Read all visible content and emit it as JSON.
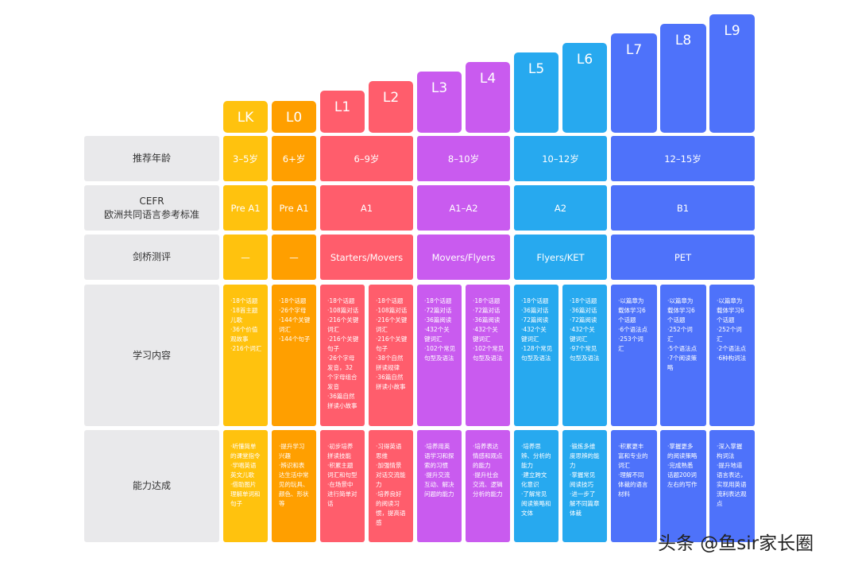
{
  "levels": {
    "lk": "LK",
    "l0": "L0",
    "l1": "L1",
    "l2": "L2",
    "l3": "L3",
    "l4": "L4",
    "l5": "L5",
    "l6": "L6",
    "l7": "L7",
    "l8": "L8",
    "l9": "L9"
  },
  "row_labels": {
    "age": "推荐年龄",
    "cefr": "CEFR\n欧洲共同语言参考标准",
    "cambridge": "剑桥测评",
    "content": "学习内容",
    "ability": "能力达成"
  },
  "age": {
    "lk": "3–5岁",
    "l0": "6+岁",
    "l1l2": "6–9岁",
    "l3l4": "8–10岁",
    "l5l6": "10–12岁",
    "l7l9": "12–15岁"
  },
  "cefr": {
    "lk": "Pre A1",
    "l0": "Pre A1",
    "l1l2": "A1",
    "l3l4": "A1–A2",
    "l5l6": "A2",
    "l7l9": "B1"
  },
  "cambridge": {
    "lk": "—",
    "l0": "—",
    "l1l2": "Starters/Movers",
    "l3l4": "Movers/Flyers",
    "l5l6": "Flyers/KET",
    "l7l9": "PET"
  },
  "content": {
    "lk": [
      "·18个话题",
      "·18首主题",
      "儿歌",
      "·36个价值",
      "观故事",
      "·216个词汇"
    ],
    "l0": [
      "·18个话题",
      "·26个字母",
      "·144个关键",
      "词汇",
      "·144个句子"
    ],
    "l1": [
      "·18个话题",
      "·108篇对话",
      "·216个关键",
      "词汇",
      "·216个关键",
      "句子",
      "·26个字母",
      "发音，32",
      "个字母组合",
      "发音",
      "·36篇自然",
      "拼读小故事"
    ],
    "l2": [
      "·18个话题",
      "·108篇对话",
      "·216个关键",
      "词汇",
      "·216个关键",
      "句子",
      "·38个自然",
      "拼读规律",
      "·36篇自然",
      "拼读小故事"
    ],
    "l3": [
      "·18个话题",
      "·72篇对话",
      "·36篇阅读",
      "·432个关",
      "键词汇",
      "·102个常见",
      "句型及语法"
    ],
    "l4": [
      "·18个话题",
      "·72篇对话",
      "·36篇阅读",
      "·432个关",
      "键词汇",
      "·102个常见",
      "句型及语法"
    ],
    "l5": [
      "·18个话题",
      "·36篇对话",
      "·72篇阅读",
      "·432个关",
      "键词汇",
      "·128个常见",
      "句型及语法"
    ],
    "l6": [
      "·18个话题",
      "·36篇对话",
      "·72篇阅读",
      "·432个关",
      "键词汇",
      "·97个常见",
      "句型及语法"
    ],
    "l7": [
      "·以篇章为",
      "载体学习6",
      "个话题",
      "·6个语法点",
      "·253个词",
      "汇"
    ],
    "l8": [
      "·以篇章为",
      "载体学习6",
      "个话题",
      "·252个词",
      "汇",
      "·5个语法点",
      "·7个阅读策",
      "略"
    ],
    "l9": [
      "·以篇章为",
      "载体学习6",
      "个话题",
      "·252个词",
      "汇",
      "·2个语法点",
      "·6种构词法"
    ]
  },
  "ability": {
    "lk": [
      "·听懂简单",
      "的课堂指令",
      "·学唱英语",
      "英文儿歌",
      "·借助图片",
      "理解单词和",
      "句子"
    ],
    "l0": [
      "·提升学习",
      "兴趣",
      "·辨识和表",
      "达生活中常",
      "见的玩具、",
      "颜色、形状",
      "等"
    ],
    "l1": [
      "·初步培养",
      "拼读技能",
      "·积累主题",
      "词汇和句型",
      "·在场景中",
      "进行简单对",
      "话"
    ],
    "l2": [
      "·习得英语",
      "思维",
      "·加强情景",
      "对话交流能",
      "力",
      "·培养良好",
      "的阅读习",
      "惯，提高语",
      "感"
    ],
    "l3": [
      "·培养用英",
      "语学习和探",
      "索的习惯",
      "·提升交流",
      "互动、解决",
      "问题的能力"
    ],
    "l4": [
      "·培养表达",
      "情感和观点",
      "的能力",
      "·提升社会",
      "交流、逻辑",
      "分析的能力"
    ],
    "l5": [
      "·培养思",
      "辨、分析的",
      "能力",
      "·建立跨文",
      "化意识",
      "·了解常见",
      "阅读策略和",
      "文体"
    ],
    "l6": [
      "·锻炼多维",
      "度思辨的能",
      "力",
      "·掌握常见",
      "阅读技巧",
      "·进一步了",
      "解不同篇章",
      "体裁"
    ],
    "l7": [
      "·积累更丰",
      "富和专业的",
      "词汇",
      "·理解不同",
      "体裁的语言",
      "材料"
    ],
    "l8": [
      "·掌握更多",
      "的阅读策略",
      "·完成熟悉",
      "话题200词",
      "左右的写作"
    ],
    "l9": [
      "·深入掌握",
      "构词法",
      "·提升地道",
      "语言表达，",
      "实现用英语",
      "流利表达观",
      "点"
    ]
  },
  "watermark": "头条 @鱼sir家长圈",
  "colors": {
    "lk": "#ffc20e",
    "l0": "#ff9f00",
    "red": "#ff5d6c",
    "purple": "#c95bef",
    "cyan": "#27a9ef",
    "blue": "#4e72fa",
    "row_label_bg": "#e9e9eb"
  }
}
